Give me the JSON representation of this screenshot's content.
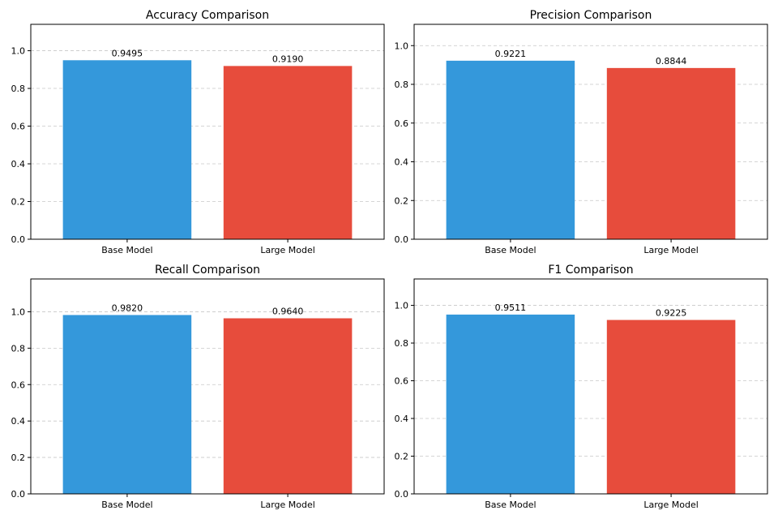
{
  "chart_data": [
    {
      "type": "bar",
      "title": "Accuracy Comparison",
      "xlabel": "",
      "ylabel": "",
      "categories": [
        "Base Model",
        "Large Model"
      ],
      "values": [
        0.9495,
        0.919
      ],
      "value_labels": [
        "0.9495",
        "0.9190"
      ],
      "colors": [
        "#3498db",
        "#e74c3c"
      ],
      "ylim": [
        0,
        1.14
      ],
      "yticks": [
        0.0,
        0.2,
        0.4,
        0.6,
        0.8,
        1.0
      ],
      "ytick_labels": [
        "0.0",
        "0.2",
        "0.4",
        "0.6",
        "0.8",
        "1.0"
      ],
      "grid": "y-dashed"
    },
    {
      "type": "bar",
      "title": "Precision Comparison",
      "xlabel": "",
      "ylabel": "",
      "categories": [
        "Base Model",
        "Large Model"
      ],
      "values": [
        0.9221,
        0.8844
      ],
      "value_labels": [
        "0.9221",
        "0.8844"
      ],
      "colors": [
        "#3498db",
        "#e74c3c"
      ],
      "ylim": [
        0,
        1.11
      ],
      "yticks": [
        0.0,
        0.2,
        0.4,
        0.6,
        0.8,
        1.0
      ],
      "ytick_labels": [
        "0.0",
        "0.2",
        "0.4",
        "0.6",
        "0.8",
        "1.0"
      ],
      "grid": "y-dashed"
    },
    {
      "type": "bar",
      "title": "Recall Comparison",
      "xlabel": "",
      "ylabel": "",
      "categories": [
        "Base Model",
        "Large Model"
      ],
      "values": [
        0.982,
        0.964
      ],
      "value_labels": [
        "0.9820",
        "0.9640"
      ],
      "colors": [
        "#3498db",
        "#e74c3c"
      ],
      "ylim": [
        0,
        1.18
      ],
      "yticks": [
        0.0,
        0.2,
        0.4,
        0.6,
        0.8,
        1.0
      ],
      "ytick_labels": [
        "0.0",
        "0.2",
        "0.4",
        "0.6",
        "0.8",
        "1.0"
      ],
      "grid": "y-dashed"
    },
    {
      "type": "bar",
      "title": "F1 Comparison",
      "xlabel": "",
      "ylabel": "",
      "categories": [
        "Base Model",
        "Large Model"
      ],
      "values": [
        0.9511,
        0.9225
      ],
      "value_labels": [
        "0.9511",
        "0.9225"
      ],
      "colors": [
        "#3498db",
        "#e74c3c"
      ],
      "ylim": [
        0,
        1.14
      ],
      "yticks": [
        0.0,
        0.2,
        0.4,
        0.6,
        0.8,
        1.0
      ],
      "ytick_labels": [
        "0.0",
        "0.2",
        "0.4",
        "0.6",
        "0.8",
        "1.0"
      ],
      "grid": "y-dashed"
    }
  ]
}
